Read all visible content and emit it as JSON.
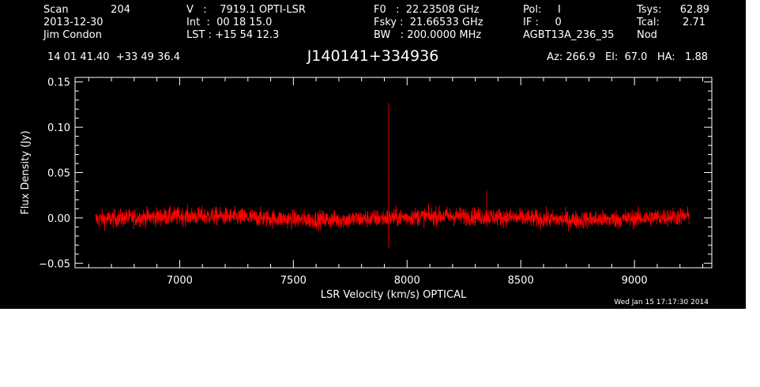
{
  "header": {
    "col1": [
      "Scan",
      "2013-12-30",
      "Jim Condon"
    ],
    "scan_number": "204",
    "col2": [
      "V   :    7919.1 OPTI-LSR",
      "Int  :  00 18 15.0",
      "LST : +15 54 12.3"
    ],
    "col3": [
      "F0   :  22.23508 GHz",
      "Fsky :  21.66533 GHz",
      "BW   : 200.0000 MHz"
    ],
    "col4": [
      "Pol:     I",
      "IF :     0",
      "AGBT13A_236_35"
    ],
    "col5_labels": [
      "Tsys:",
      "Tcal:",
      "Nod"
    ],
    "col5_values": [
      "62.89",
      "2.71",
      ""
    ],
    "coords": "14 01 41.40  +33 49 36.4",
    "source": "J140141+334936",
    "azelha": "Az: 266.9   El:  67.0   HA:   1.88",
    "timestamp": "Wed Jan 15 17:17:30 2014"
  },
  "chart_data": {
    "type": "line",
    "xlabel": "LSR Velocity (km/s) OPTICAL",
    "ylabel": "Flux Density (Jy)",
    "xlim": [
      6540,
      9340
    ],
    "ylim": [
      -0.055,
      0.155
    ],
    "xticks": [
      7000,
      7500,
      8000,
      8500,
      9000
    ],
    "xtick_labels": [
      "7000",
      "7500",
      "8000",
      "8500",
      "9000"
    ],
    "yticks": [
      -0.05,
      0.0,
      0.05,
      0.1,
      0.15
    ],
    "ytick_labels": [
      "−0.05",
      "0.00",
      "0.05",
      "0.10",
      "0.15"
    ],
    "series": [
      {
        "color": "#ff0000",
        "x_range": [
          6630,
          9240
        ],
        "baseline": 0.0,
        "noise_rms": 0.005,
        "spikes": [
          {
            "x": 7919,
            "peak": 0.127,
            "min": -0.033
          },
          {
            "x": 8350,
            "peak": 0.03,
            "min": -0.01
          }
        ]
      }
    ],
    "grid": false
  }
}
